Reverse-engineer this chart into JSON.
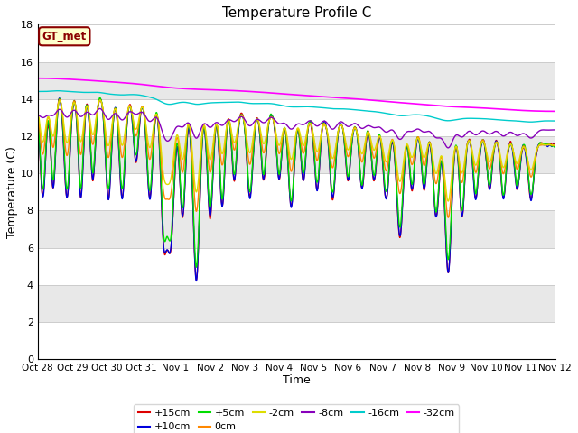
{
  "title": "Temperature Profile C",
  "xlabel": "Time",
  "ylabel": "Temperature (C)",
  "ylim": [
    0,
    18
  ],
  "yticks": [
    0,
    2,
    4,
    6,
    8,
    10,
    12,
    14,
    16,
    18
  ],
  "series_labels": [
    "+15cm",
    "+10cm",
    "+5cm",
    "0cm",
    "-2cm",
    "-8cm",
    "-16cm",
    "-32cm"
  ],
  "series_colors": [
    "#dd0000",
    "#0000dd",
    "#00dd00",
    "#ff8800",
    "#dddd00",
    "#8800bb",
    "#00cccc",
    "#ff00ff"
  ],
  "series_linewidths": [
    1.0,
    1.0,
    1.0,
    1.0,
    1.0,
    1.0,
    1.0,
    1.2
  ],
  "annotation_text": "GT_met",
  "background_color": "#ffffff",
  "plot_bg_color": "#ebebeb",
  "band_colors": [
    "#ffffff",
    "#e8e8e8"
  ],
  "n_points": 1440,
  "x_start": 0,
  "x_end": 15,
  "xtick_positions": [
    0,
    1,
    2,
    3,
    4,
    5,
    6,
    7,
    8,
    9,
    10,
    11,
    12,
    13,
    14,
    15
  ],
  "xtick_labels": [
    "Oct 28",
    "Oct 29",
    "Oct 30",
    "Oct 31",
    "Nov 1",
    "Nov 2",
    "Nov 3",
    "Nov 4",
    "Nov 5",
    "Nov 6",
    "Nov 7",
    "Nov 8",
    "Nov 9",
    "Nov 10",
    "Nov 11",
    "Nov 12"
  ]
}
